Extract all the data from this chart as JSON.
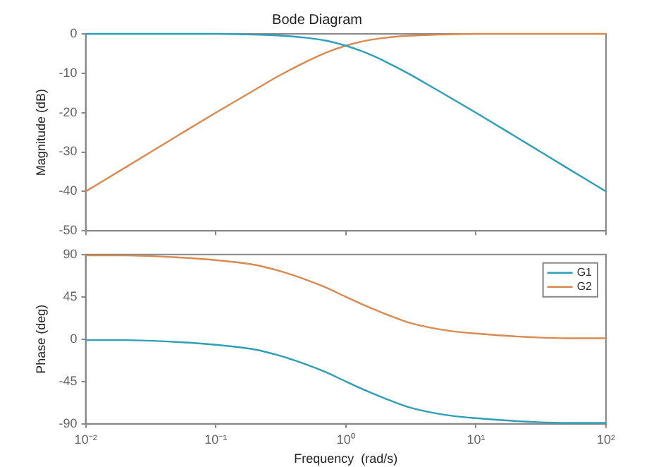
{
  "chart_data": [
    {
      "type": "line",
      "title": "Bode Diagram",
      "ylabel": "Magnitude (dB)",
      "x": [
        0.01,
        0.02,
        0.05,
        0.1,
        0.2,
        0.3,
        0.5,
        0.7,
        1,
        1.5,
        2,
        3,
        5,
        7,
        10,
        20,
        50,
        100
      ],
      "series": [
        {
          "color": "#2f9fb8",
          "values": [
            0,
            0,
            0,
            0,
            -0.2,
            -0.4,
            -1,
            -1.7,
            -3,
            -5.1,
            -7,
            -10,
            -14.2,
            -17,
            -20,
            -26,
            -34,
            -40
          ]
        },
        {
          "color": "#d98a4f",
          "values": [
            -40,
            -34,
            -26,
            -20,
            -14.2,
            -10.8,
            -7,
            -4.8,
            -3,
            -1.6,
            -1,
            -0.5,
            -0.2,
            -0.1,
            0,
            0,
            0,
            0
          ]
        }
      ],
      "log": "x",
      "xlim": [
        0.01,
        100
      ],
      "xticks": [
        {
          "value": 0.01,
          "label": null
        },
        {
          "value": 0.1,
          "label": null
        },
        {
          "value": 1,
          "label": null
        },
        {
          "value": 10,
          "label": null
        },
        {
          "value": 100,
          "label": null
        }
      ],
      "ylim": [
        -50,
        0
      ],
      "yticks": [
        -50,
        -40,
        -30,
        -20,
        -10,
        0
      ],
      "tick_labels": "y",
      "grid": false,
      "legend": false,
      "marker": "none"
    },
    {
      "type": "line",
      "xlabel": "Frequency  (rad/s)",
      "ylabel": "Phase (deg)",
      "x": [
        0.01,
        0.02,
        0.05,
        0.1,
        0.2,
        0.3,
        0.5,
        0.7,
        1,
        1.5,
        2,
        3,
        5,
        7,
        10,
        20,
        50,
        100
      ],
      "series": [
        {
          "name": "G1",
          "color": "#2f9fb8",
          "values": [
            -1,
            -1,
            -3,
            -6,
            -11,
            -17,
            -27,
            -35,
            -45,
            -56,
            -63,
            -72,
            -79,
            -82,
            -84,
            -87,
            -89,
            -89
          ]
        },
        {
          "name": "G2",
          "color": "#d98a4f",
          "values": [
            89,
            89,
            87,
            84,
            79,
            73,
            63,
            55,
            45,
            34,
            27,
            18,
            11,
            8,
            6,
            3,
            1,
            1
          ]
        }
      ],
      "log": "x",
      "xlim": [
        0.01,
        100
      ],
      "xticks": [
        {
          "value": 0.01,
          "label": "10⁻²"
        },
        {
          "value": 0.1,
          "label": "10⁻¹"
        },
        {
          "value": 1,
          "label": "10⁰"
        },
        {
          "value": 10,
          "label": "10¹"
        },
        {
          "value": 100,
          "label": "10²"
        }
      ],
      "ylim": [
        -90,
        90
      ],
      "yticks": [
        -90,
        -45,
        0,
        45,
        90
      ],
      "grid": false,
      "legend": "top right",
      "marker": "none"
    }
  ]
}
